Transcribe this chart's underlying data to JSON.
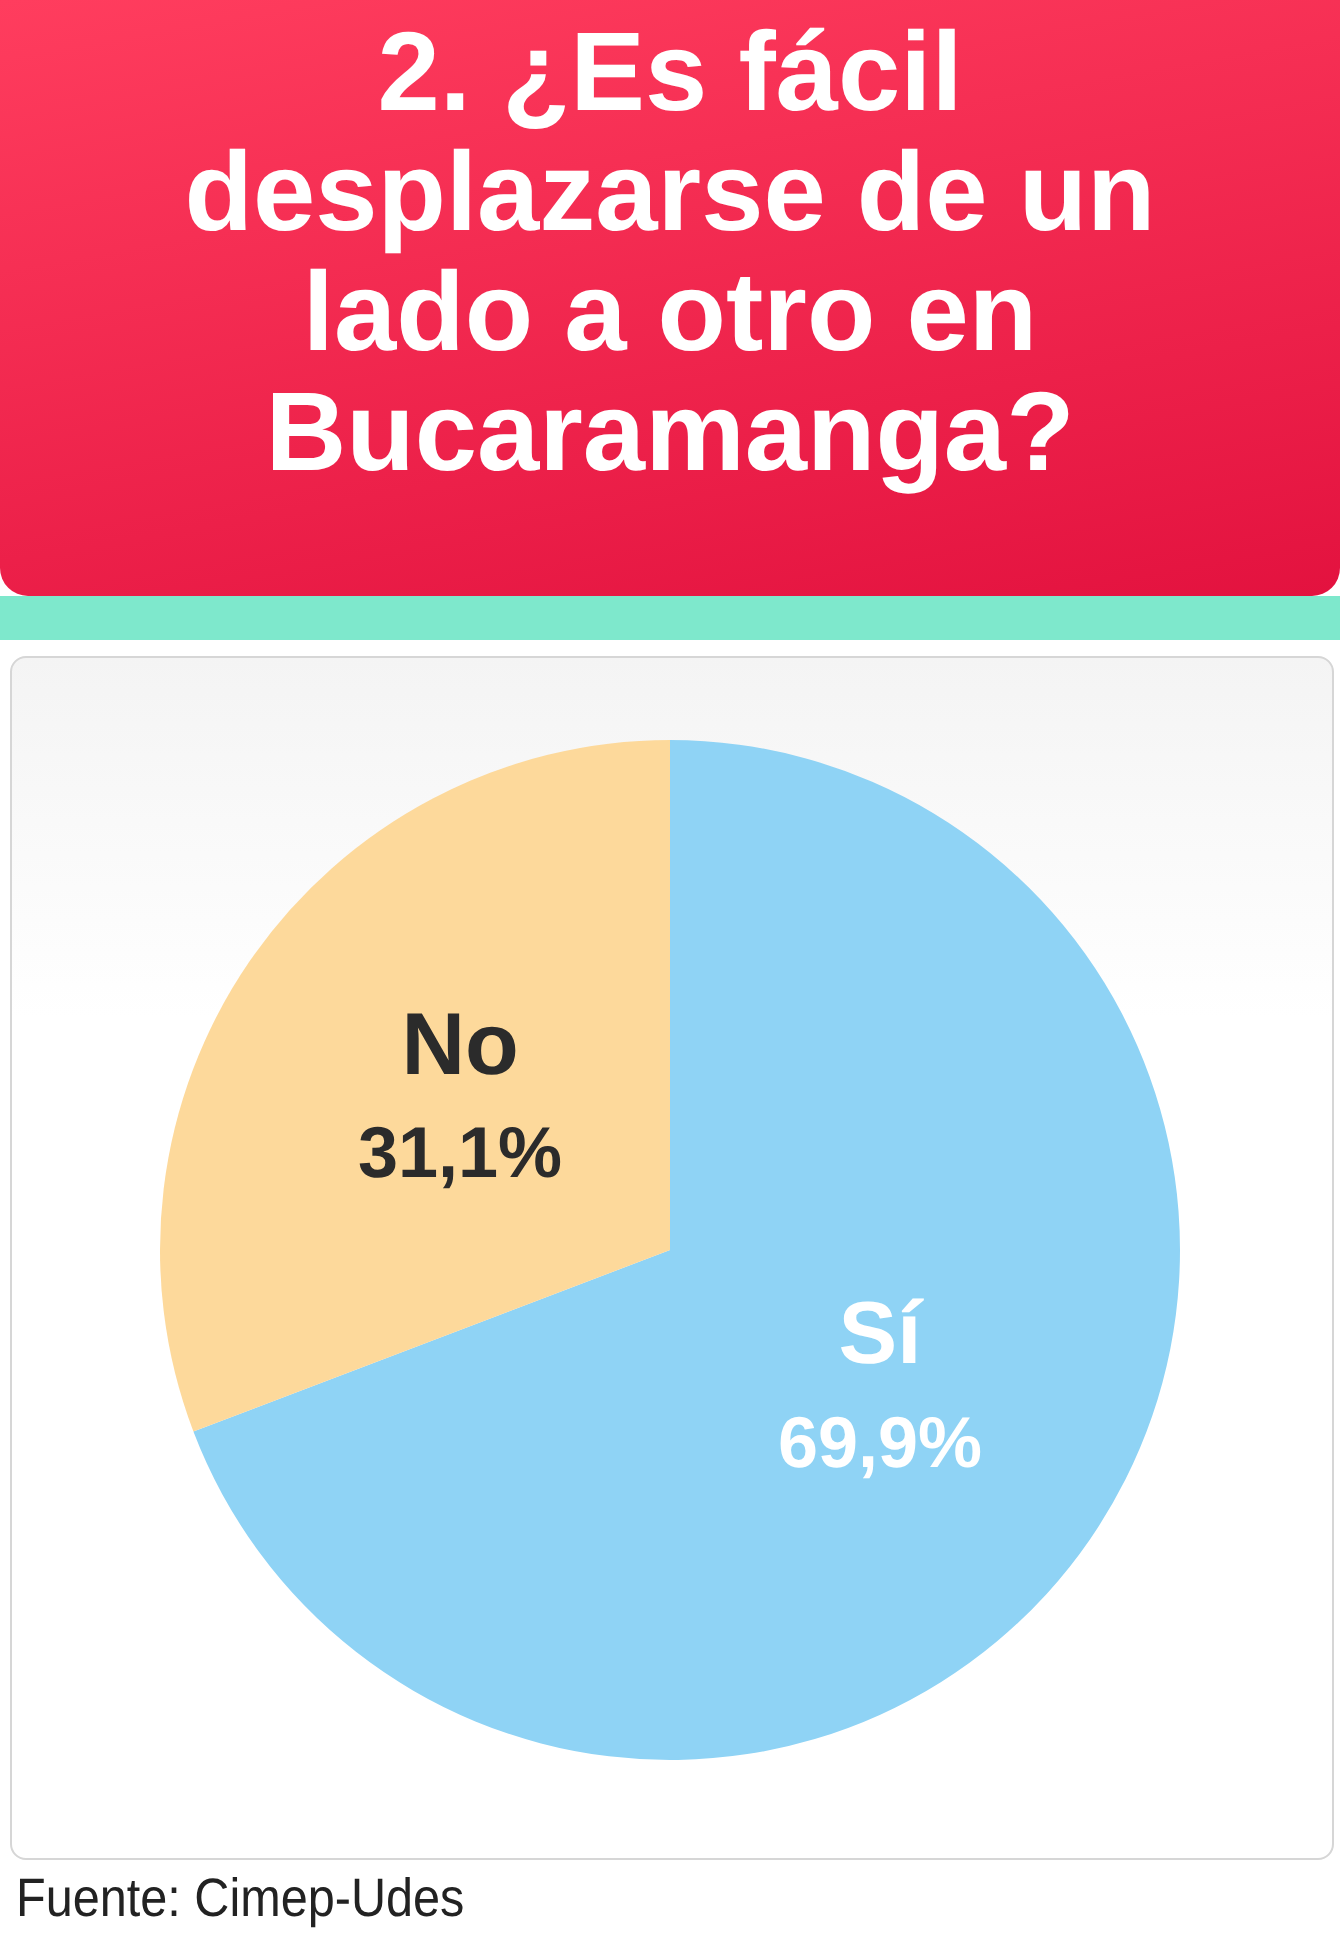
{
  "chart_data": {
    "type": "pie",
    "title": "2. ¿Es fácil desplazarse de un lado a otro en Bucaramanga?",
    "categories": [
      "Sí",
      "No"
    ],
    "values": [
      69.9,
      31.1
    ],
    "value_labels": [
      "69,9%",
      "31,1%"
    ],
    "colors": [
      "#8fd3f5",
      "#fdd99b"
    ],
    "legend": false,
    "annotations": [
      "Fuente: Cimep-Udes"
    ]
  }
}
